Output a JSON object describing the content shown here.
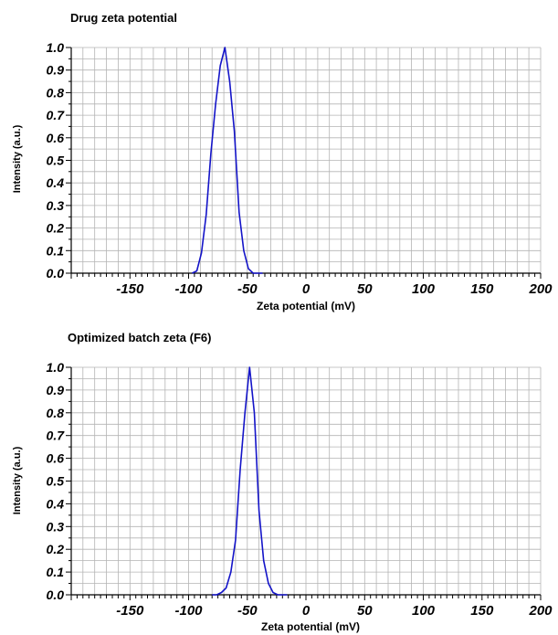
{
  "chart_data": [
    {
      "type": "line",
      "title": "Drug zeta potential",
      "xlabel": "Zeta potential (mV)",
      "ylabel": "Intensity (a.u.)",
      "xlim": [
        -200,
        200
      ],
      "ylim": [
        0,
        1.0
      ],
      "x_ticks": [
        "-150",
        "-100",
        "-50",
        "0",
        "50",
        "100",
        "150",
        "200"
      ],
      "y_ticks": [
        "0.0",
        "0.1",
        "0.2",
        "0.3",
        "0.4",
        "0.5",
        "0.6",
        "0.7",
        "0.8",
        "0.9",
        "1.0"
      ],
      "grid": true,
      "line_color": "#1414c8",
      "series": [
        {
          "x": [
            -97,
            -93,
            -89,
            -85,
            -81,
            -77,
            -73,
            -69,
            -65,
            -61,
            -57,
            -53,
            -49,
            -45,
            -41,
            -37
          ],
          "y": [
            0.0,
            0.01,
            0.09,
            0.26,
            0.53,
            0.75,
            0.92,
            1.0,
            0.85,
            0.63,
            0.27,
            0.1,
            0.02,
            0.0,
            0.0,
            0.0
          ]
        }
      ]
    },
    {
      "type": "line",
      "title": "Optimized batch zeta (F6)",
      "xlabel": "Zeta potential (mV)",
      "ylabel": "Intensity (a.u.)",
      "xlim": [
        -200,
        200
      ],
      "ylim": [
        0,
        1.0
      ],
      "x_ticks": [
        "-150",
        "-100",
        "-50",
        "0",
        "50",
        "100",
        "150",
        "200"
      ],
      "y_ticks": [
        "0.0",
        "0.1",
        "0.2",
        "0.3",
        "0.4",
        "0.5",
        "0.6",
        "0.7",
        "0.8",
        "0.9",
        "1.0"
      ],
      "grid": true,
      "line_color": "#1414c8",
      "series": [
        {
          "x": [
            -80,
            -76,
            -72,
            -68,
            -64,
            -60,
            -56,
            -52,
            -48,
            -44,
            -40,
            -36,
            -32,
            -28,
            -24,
            -20,
            -16
          ],
          "y": [
            0.0,
            0.0,
            0.01,
            0.03,
            0.1,
            0.24,
            0.55,
            0.8,
            1.0,
            0.8,
            0.37,
            0.15,
            0.05,
            0.01,
            0.0,
            0.0,
            0.0
          ]
        }
      ]
    }
  ]
}
